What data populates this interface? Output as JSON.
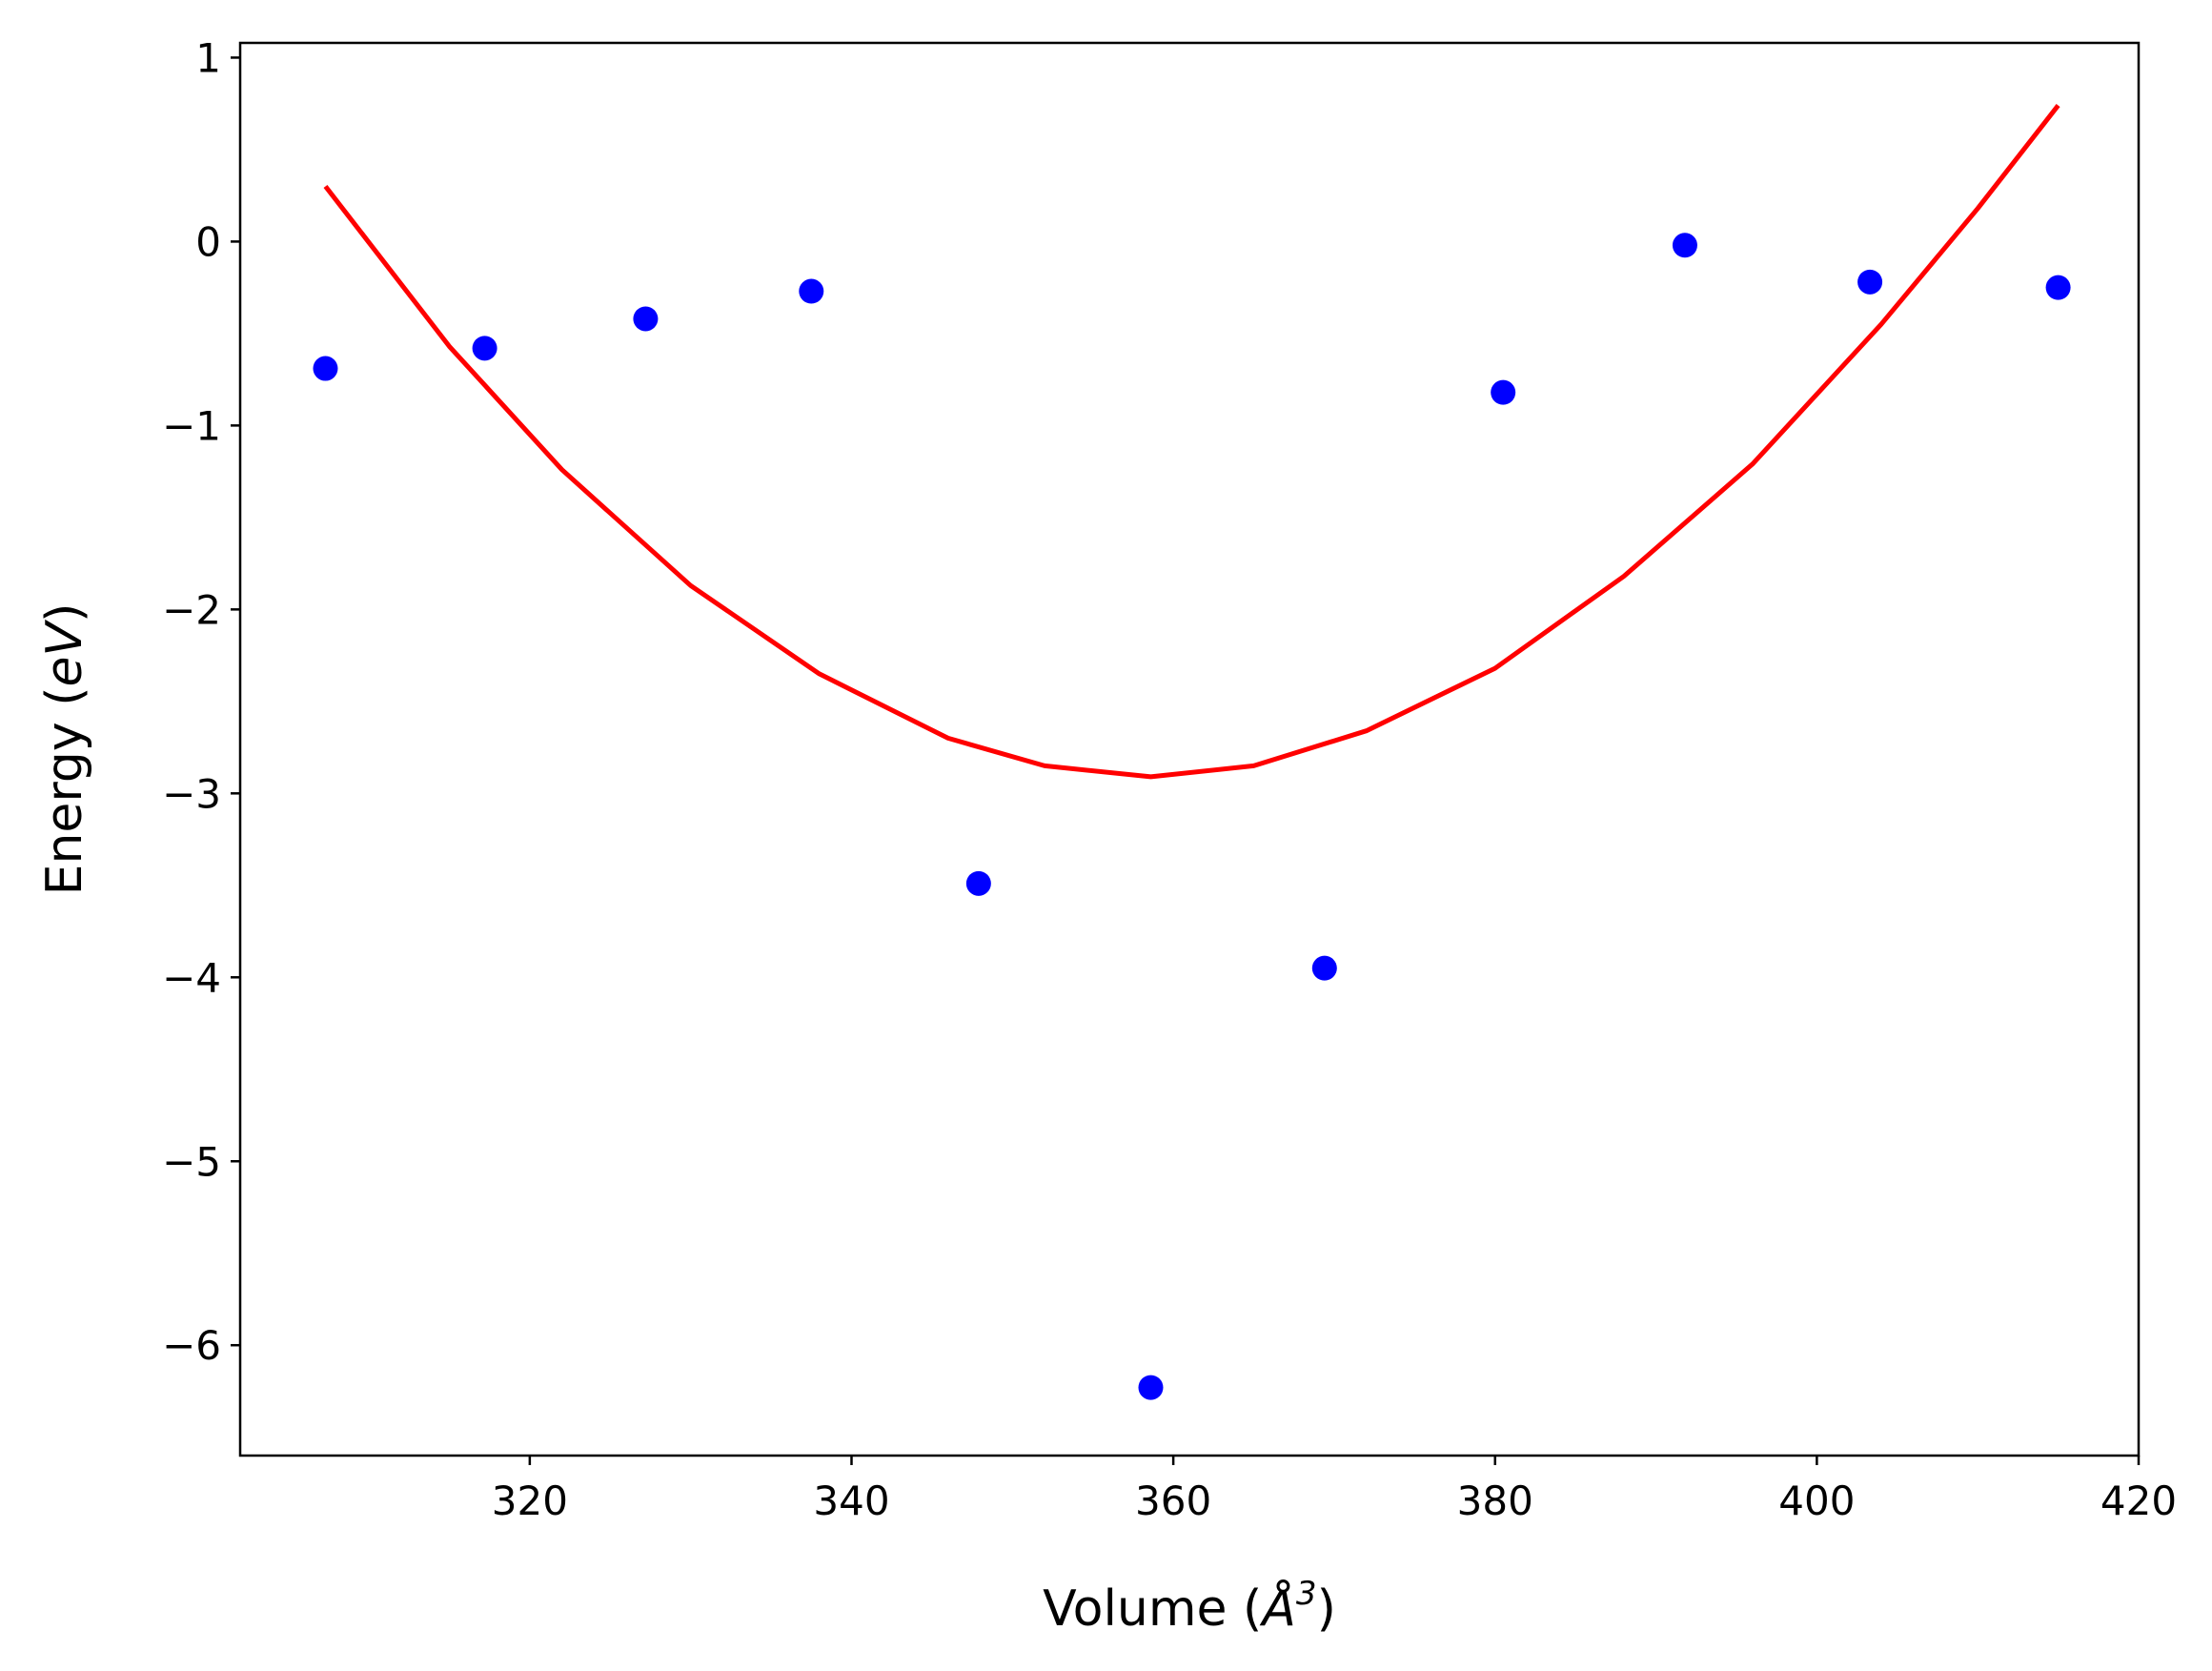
{
  "chart_data": {
    "type": "scatter",
    "title": "",
    "xlabel": "Volume (",
    "xlabel_symbol": "Å",
    "xlabel_exponent": "3",
    "xlabel_close": ")",
    "ylabel": "Energy (",
    "ylabel_unit": "eV",
    "ylabel_close": ")",
    "xlim": [
      302,
      420
    ],
    "ylim": [
      -6.6,
      1.08
    ],
    "xticks": [
      320,
      340,
      360,
      380,
      400,
      420
    ],
    "xtick_labels": [
      "320",
      "340",
      "360",
      "380",
      "400",
      "420"
    ],
    "yticks": [
      1,
      0,
      -1,
      -2,
      -3,
      -4,
      -5,
      -6
    ],
    "ytick_labels": [
      "1",
      "0",
      "−1",
      "−2",
      "−3",
      "−4",
      "−5",
      "−6"
    ],
    "grid": false,
    "series": [
      {
        "kind": "points",
        "color": "#0000ff",
        "x": [
          307.3,
          317.2,
          327.2,
          337.5,
          347.9,
          358.6,
          369.4,
          380.5,
          391.8,
          403.3,
          415.0
        ],
        "y": [
          -0.69,
          -0.58,
          -0.42,
          -0.27,
          -3.49,
          -6.23,
          -3.95,
          -0.82,
          -0.02,
          -0.22,
          -0.25
        ]
      },
      {
        "kind": "fit-curve",
        "color": "#ff0000",
        "x": [
          307.3,
          315.0,
          322.0,
          330.0,
          338.0,
          346.0,
          352.0,
          358.6,
          365.0,
          372.0,
          380.0,
          388.0,
          396.0,
          404.0,
          410.0,
          415.0
        ],
        "y": [
          0.3,
          -0.57,
          -1.24,
          -1.87,
          -2.35,
          -2.7,
          -2.85,
          -2.91,
          -2.85,
          -2.66,
          -2.32,
          -1.82,
          -1.21,
          -0.45,
          0.18,
          0.74
        ]
      }
    ]
  }
}
